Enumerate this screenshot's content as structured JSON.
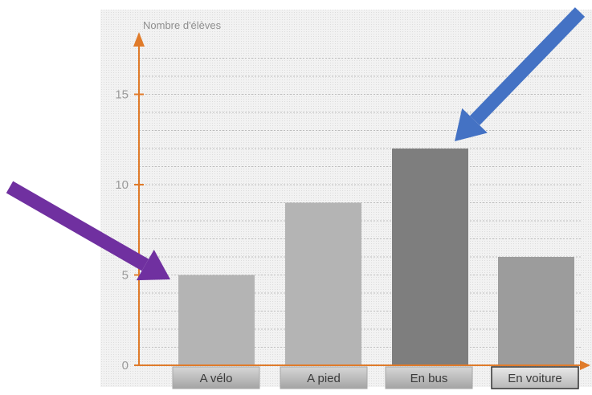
{
  "chart_data": {
    "type": "bar",
    "title": "",
    "xlabel": "",
    "ylabel": "Nombre d'élèves",
    "categories": [
      "A vélo",
      "A pied",
      "En bus",
      "En voiture"
    ],
    "values": [
      5,
      9,
      12,
      6
    ],
    "ylim": [
      0,
      18
    ],
    "yticks": [
      0,
      5,
      10,
      15
    ],
    "grid": true,
    "bar_colors": [
      "#b4b4b4",
      "#b4b4b4",
      "#7e7e7e",
      "#9c9c9c"
    ],
    "axis_color": "#e07b2a",
    "highlighted_category": "En voiture",
    "annotations": [
      {
        "kind": "arrow",
        "color": "#7030a0",
        "points_to": "A vélo"
      },
      {
        "kind": "arrow",
        "color": "#4472c4",
        "points_to": "En bus"
      }
    ]
  }
}
